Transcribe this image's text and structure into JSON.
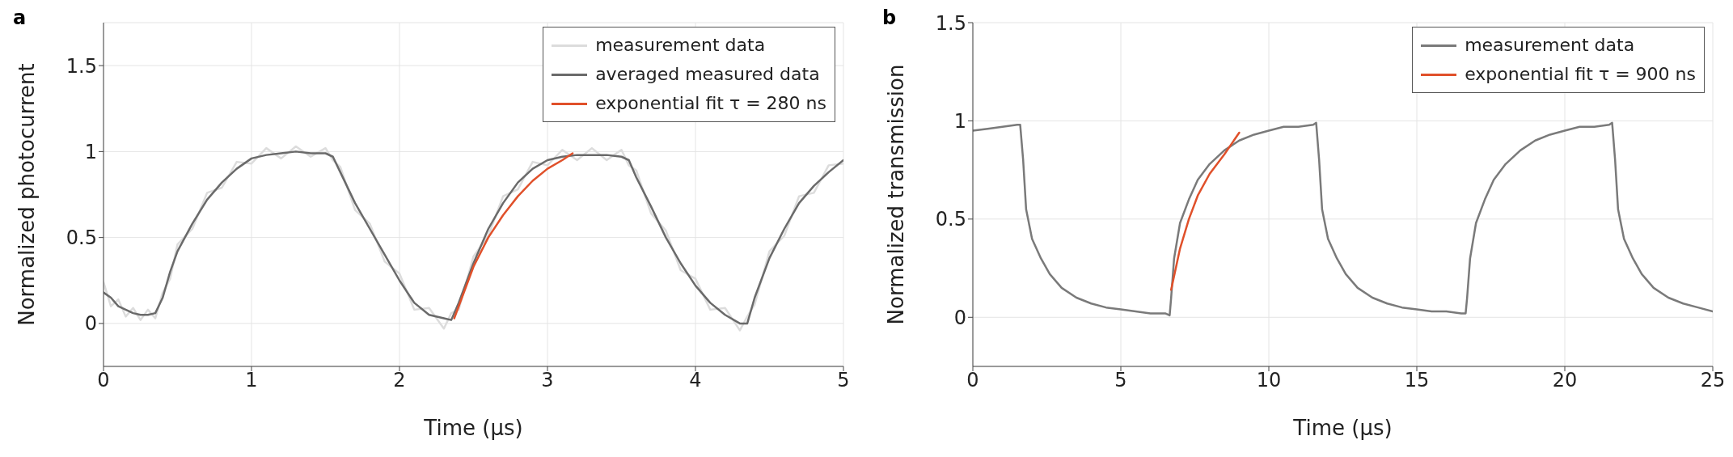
{
  "chart_data": [
    {
      "type": "line",
      "title": "a",
      "xlabel": "Time (μs)",
      "ylabel": "Normalized photocurrent",
      "xlim": [
        0,
        5
      ],
      "xticks": [
        0,
        1,
        2,
        3,
        4,
        5
      ],
      "ylim": [
        -0.25,
        1.75
      ],
      "yticks": [
        0,
        0.5,
        1,
        1.5
      ],
      "grid": true,
      "legend": "top right",
      "series": [
        {
          "name": "measurement data",
          "color": "#dcdcdc",
          "x": [
            0,
            0.05,
            0.1,
            0.15,
            0.2,
            0.25,
            0.3,
            0.35,
            0.4,
            0.45,
            0.5,
            0.6,
            0.7,
            0.8,
            0.9,
            1.0,
            1.1,
            1.2,
            1.3,
            1.4,
            1.5,
            1.55,
            1.6,
            1.7,
            1.8,
            1.9,
            2.0,
            2.1,
            2.2,
            2.3,
            2.35,
            2.4,
            2.5,
            2.6,
            2.7,
            2.8,
            2.9,
            3.0,
            3.1,
            3.2,
            3.3,
            3.4,
            3.5,
            3.55,
            3.6,
            3.7,
            3.8,
            3.9,
            4.0,
            4.1,
            4.2,
            4.3,
            4.35,
            4.4,
            4.5,
            4.6,
            4.7,
            4.8,
            4.9,
            5.0
          ],
          "values": [
            0.24,
            0.1,
            0.14,
            0.04,
            0.09,
            0.02,
            0.08,
            0.03,
            0.18,
            0.26,
            0.46,
            0.55,
            0.76,
            0.79,
            0.94,
            0.93,
            1.02,
            0.96,
            1.03,
            0.97,
            1.02,
            0.95,
            0.91,
            0.66,
            0.58,
            0.36,
            0.29,
            0.08,
            0.09,
            -0.03,
            0.06,
            0.08,
            0.39,
            0.51,
            0.74,
            0.78,
            0.94,
            0.92,
            1.01,
            0.95,
            1.02,
            0.95,
            1.01,
            0.92,
            0.89,
            0.64,
            0.54,
            0.31,
            0.26,
            0.08,
            0.09,
            -0.04,
            0.04,
            0.11,
            0.42,
            0.51,
            0.74,
            0.76,
            0.92,
            0.93
          ]
        },
        {
          "name": "averaged measured data",
          "color": "#6a6a6a",
          "x": [
            0,
            0.05,
            0.1,
            0.15,
            0.2,
            0.25,
            0.3,
            0.35,
            0.4,
            0.45,
            0.5,
            0.6,
            0.7,
            0.8,
            0.9,
            1.0,
            1.1,
            1.2,
            1.3,
            1.4,
            1.5,
            1.55,
            1.6,
            1.7,
            1.8,
            1.9,
            2.0,
            2.1,
            2.2,
            2.3,
            2.35,
            2.4,
            2.5,
            2.6,
            2.7,
            2.8,
            2.9,
            3.0,
            3.1,
            3.2,
            3.3,
            3.4,
            3.5,
            3.55,
            3.6,
            3.7,
            3.8,
            3.9,
            4.0,
            4.1,
            4.2,
            4.3,
            4.35,
            4.4,
            4.5,
            4.6,
            4.7,
            4.8,
            4.9,
            5.0
          ],
          "values": [
            0.18,
            0.15,
            0.1,
            0.08,
            0.06,
            0.05,
            0.05,
            0.06,
            0.15,
            0.3,
            0.42,
            0.58,
            0.72,
            0.82,
            0.9,
            0.96,
            0.98,
            0.99,
            1.0,
            0.99,
            0.99,
            0.97,
            0.88,
            0.7,
            0.55,
            0.4,
            0.25,
            0.12,
            0.05,
            0.03,
            0.02,
            0.12,
            0.35,
            0.55,
            0.7,
            0.82,
            0.9,
            0.95,
            0.97,
            0.98,
            0.98,
            0.98,
            0.97,
            0.95,
            0.85,
            0.68,
            0.5,
            0.35,
            0.22,
            0.12,
            0.05,
            0.0,
            0.0,
            0.15,
            0.38,
            0.55,
            0.7,
            0.8,
            0.88,
            0.95
          ]
        },
        {
          "name": "exponential fit τ = 280 ns",
          "color": "#e0502a",
          "x": [
            2.37,
            2.5,
            2.6,
            2.7,
            2.8,
            2.9,
            3.0,
            3.1,
            3.17
          ],
          "values": [
            0.03,
            0.33,
            0.5,
            0.63,
            0.74,
            0.83,
            0.9,
            0.95,
            0.99
          ]
        }
      ]
    },
    {
      "type": "line",
      "title": "b",
      "xlabel": "Time (μs)",
      "ylabel": "Normalized transmission",
      "xlim": [
        0,
        25
      ],
      "xticks": [
        0,
        5,
        10,
        15,
        20,
        25
      ],
      "ylim": [
        -0.25,
        1.5
      ],
      "yticks": [
        0,
        0.5,
        1,
        1.5
      ],
      "grid": true,
      "legend": "top right",
      "series": [
        {
          "name": "measurement data",
          "color": "#7a7a7a",
          "x": [
            0,
            0.5,
            1,
            1.5,
            1.6,
            1.7,
            1.8,
            2,
            2.3,
            2.6,
            3,
            3.5,
            4,
            4.5,
            5,
            5.5,
            6,
            6.5,
            6.65,
            6.7,
            6.8,
            7,
            7.3,
            7.6,
            8,
            8.5,
            9,
            9.5,
            10,
            10.5,
            11,
            11.5,
            11.6,
            11.7,
            11.8,
            12,
            12.3,
            12.6,
            13,
            13.5,
            14,
            14.5,
            15,
            15.5,
            16,
            16.5,
            16.65,
            16.7,
            16.8,
            17,
            17.3,
            17.6,
            18,
            18.5,
            19,
            19.5,
            20,
            20.5,
            21,
            21.5,
            21.6,
            21.7,
            21.8,
            22,
            22.3,
            22.6,
            23,
            23.5,
            24,
            24.5,
            25
          ],
          "values": [
            0.95,
            0.96,
            0.97,
            0.98,
            0.98,
            0.8,
            0.55,
            0.4,
            0.3,
            0.22,
            0.15,
            0.1,
            0.07,
            0.05,
            0.04,
            0.03,
            0.02,
            0.02,
            0.01,
            0.1,
            0.3,
            0.48,
            0.6,
            0.7,
            0.78,
            0.85,
            0.9,
            0.93,
            0.95,
            0.97,
            0.97,
            0.98,
            0.99,
            0.8,
            0.55,
            0.4,
            0.3,
            0.22,
            0.15,
            0.1,
            0.07,
            0.05,
            0.04,
            0.03,
            0.03,
            0.02,
            0.02,
            0.1,
            0.3,
            0.48,
            0.6,
            0.7,
            0.78,
            0.85,
            0.9,
            0.93,
            0.95,
            0.97,
            0.97,
            0.98,
            0.99,
            0.8,
            0.55,
            0.4,
            0.3,
            0.22,
            0.15,
            0.1,
            0.07,
            0.05,
            0.03
          ]
        },
        {
          "name": "exponential fit τ = 900 ns",
          "color": "#e0502a",
          "x": [
            6.7,
            7,
            7.3,
            7.6,
            8,
            8.5,
            9
          ],
          "values": [
            0.14,
            0.35,
            0.5,
            0.62,
            0.73,
            0.83,
            0.94
          ]
        }
      ]
    }
  ]
}
